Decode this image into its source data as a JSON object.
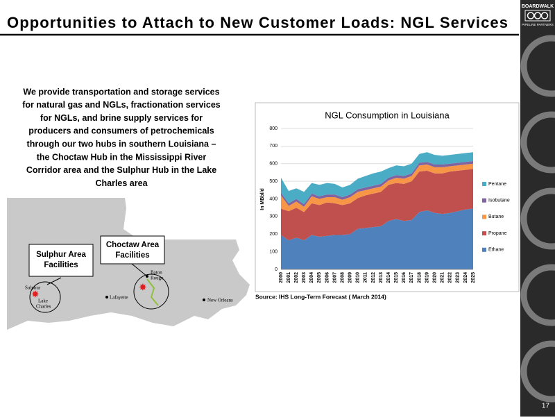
{
  "header": {
    "title": "Opportunities to Attach to New Customer Loads: NGL Services"
  },
  "logo": {
    "name": "BOARDWALK",
    "subtitle": "PIPELINE PARTNERS"
  },
  "body": {
    "lines": [
      "We provide transportation and storage services",
      "for natural gas and NGLs, fractionation services",
      "for NGLs, and brine supply services for",
      "producers and consumers of petrochemicals",
      "through our two hubs in southern Louisiana –",
      "the Choctaw Hub in the Mississippi River",
      "Corridor area and the Sulphur Hub in the Lake",
      "Charles area"
    ]
  },
  "map": {
    "callouts": [
      [
        "Sulphur Area",
        "Facilities"
      ],
      [
        "Choctaw Area",
        "Facilities"
      ]
    ],
    "places": [
      "Sulphur",
      "Lake",
      "Charles",
      "Lafayette",
      "Baton",
      "Rouge",
      "New Orleans"
    ]
  },
  "source": "Source: IHS Long-Term Forecast ( March 2014)",
  "page_number": "17",
  "chart_data": {
    "type": "stacked-area",
    "title": "NGL Consumption in Louisiana",
    "y_label": "In MBbl/d",
    "categories": [
      "2000",
      "2001",
      "2002",
      "2003",
      "2004",
      "2005",
      "2006",
      "2007",
      "2008",
      "2009",
      "2010",
      "2011",
      "2012",
      "2013",
      "2014",
      "2015",
      "2016",
      "2017",
      "2018",
      "2019",
      "2020",
      "2021",
      "2022",
      "2023",
      "2024",
      "2025"
    ],
    "series": [
      {
        "name": "Ethane",
        "color": "#4f81bd",
        "values": [
          195,
          165,
          180,
          165,
          195,
          185,
          190,
          195,
          195,
          200,
          230,
          235,
          240,
          245,
          275,
          285,
          275,
          280,
          325,
          335,
          320,
          315,
          320,
          330,
          340,
          345
        ]
      },
      {
        "name": "Propane",
        "color": "#c0504d",
        "values": [
          150,
          165,
          170,
          160,
          180,
          180,
          190,
          180,
          170,
          175,
          175,
          185,
          190,
          195,
          205,
          205,
          210,
          220,
          230,
          225,
          225,
          230,
          235,
          230,
          225,
          225
        ]
      },
      {
        "name": "Butane",
        "color": "#f79646",
        "values": [
          75,
          30,
          35,
          30,
          40,
          35,
          30,
          35,
          30,
          35,
          35,
          30,
          30,
          30,
          25,
          30,
          30,
          30,
          35,
          35,
          35,
          35,
          30,
          30,
          30,
          30
        ]
      },
      {
        "name": "Isobutane",
        "color": "#8064a2",
        "values": [
          15,
          15,
          15,
          15,
          15,
          15,
          15,
          15,
          15,
          15,
          15,
          15,
          15,
          15,
          15,
          15,
          15,
          15,
          15,
          15,
          15,
          15,
          15,
          15,
          15,
          15
        ]
      },
      {
        "name": "Pentane",
        "color": "#4bacc6",
        "values": [
          85,
          70,
          60,
          70,
          60,
          65,
          65,
          60,
          55,
          55,
          60,
          65,
          70,
          70,
          55,
          55,
          55,
          55,
          50,
          55,
          55,
          50,
          50,
          50,
          50,
          50
        ]
      }
    ],
    "ylim": [
      0,
      800
    ],
    "yticks": [
      0,
      100,
      200,
      300,
      400,
      500,
      600,
      700,
      800
    ],
    "grid": true,
    "legend": "right"
  }
}
